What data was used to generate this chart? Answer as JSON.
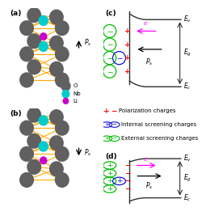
{
  "bg_color": "#ffffff",
  "o_color": "#606060",
  "nb_color": "#00cccc",
  "li_color": "#cc00cc",
  "bond_color": "#ffaa00",
  "green": "#00bb00",
  "blue": "#1111dd",
  "red": "#ff0000",
  "magenta": "#ff00ff",
  "dark": "#303030"
}
